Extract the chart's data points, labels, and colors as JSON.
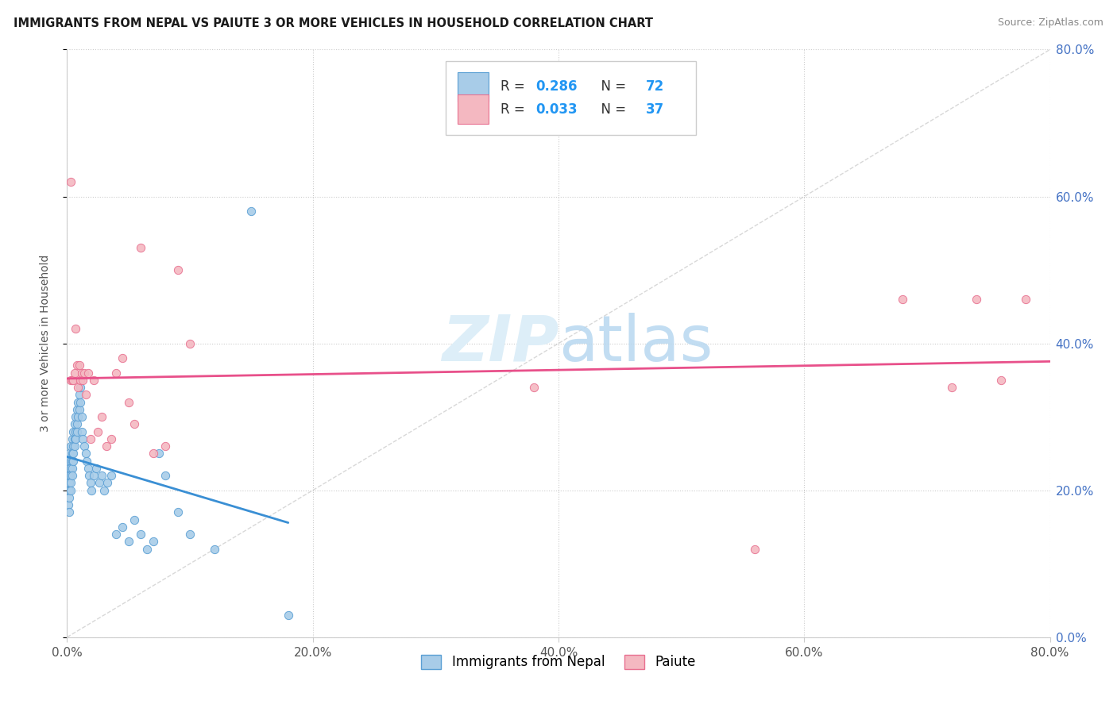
{
  "title": "IMMIGRANTS FROM NEPAL VS PAIUTE 3 OR MORE VEHICLES IN HOUSEHOLD CORRELATION CHART",
  "source": "Source: ZipAtlas.com",
  "ylabel": "3 or more Vehicles in Household",
  "xlim": [
    0.0,
    0.8
  ],
  "ylim": [
    0.0,
    0.8
  ],
  "xtick_vals": [
    0.0,
    0.2,
    0.4,
    0.6,
    0.8
  ],
  "xtick_labels": [
    "0.0%",
    "20.0%",
    "40.0%",
    "60.0%",
    "80.0%"
  ],
  "ytick_vals": [
    0.0,
    0.2,
    0.4,
    0.6,
    0.8
  ],
  "ytick_labels_right": [
    "0.0%",
    "20.0%",
    "40.0%",
    "60.0%",
    "80.0%"
  ],
  "series1_color": "#a8cce8",
  "series2_color": "#f4b8c1",
  "series1_edge": "#5a9fd4",
  "series2_edge": "#e87090",
  "trendline1_color": "#3a8fd4",
  "trendline2_color": "#e8508a",
  "diagonal_color": "#c8c8c8",
  "watermark_color": "#ddeef8",
  "background_color": "#ffffff",
  "nepal_x": [
    0.001,
    0.001,
    0.001,
    0.001,
    0.002,
    0.002,
    0.002,
    0.002,
    0.002,
    0.002,
    0.002,
    0.003,
    0.003,
    0.003,
    0.003,
    0.003,
    0.003,
    0.004,
    0.004,
    0.004,
    0.004,
    0.004,
    0.005,
    0.005,
    0.005,
    0.005,
    0.006,
    0.006,
    0.006,
    0.007,
    0.007,
    0.007,
    0.008,
    0.008,
    0.008,
    0.009,
    0.009,
    0.01,
    0.01,
    0.011,
    0.011,
    0.012,
    0.012,
    0.013,
    0.014,
    0.015,
    0.016,
    0.017,
    0.018,
    0.019,
    0.02,
    0.022,
    0.024,
    0.026,
    0.028,
    0.03,
    0.033,
    0.036,
    0.04,
    0.045,
    0.05,
    0.055,
    0.06,
    0.065,
    0.07,
    0.075,
    0.08,
    0.09,
    0.1,
    0.12,
    0.15,
    0.18
  ],
  "nepal_y": [
    0.24,
    0.22,
    0.2,
    0.18,
    0.25,
    0.23,
    0.22,
    0.21,
    0.2,
    0.19,
    0.17,
    0.26,
    0.24,
    0.23,
    0.22,
    0.21,
    0.2,
    0.27,
    0.25,
    0.24,
    0.23,
    0.22,
    0.28,
    0.26,
    0.25,
    0.24,
    0.29,
    0.27,
    0.26,
    0.3,
    0.28,
    0.27,
    0.31,
    0.29,
    0.28,
    0.32,
    0.3,
    0.33,
    0.31,
    0.34,
    0.32,
    0.3,
    0.28,
    0.27,
    0.26,
    0.25,
    0.24,
    0.23,
    0.22,
    0.21,
    0.2,
    0.22,
    0.23,
    0.21,
    0.22,
    0.2,
    0.21,
    0.22,
    0.14,
    0.15,
    0.13,
    0.16,
    0.14,
    0.12,
    0.13,
    0.25,
    0.22,
    0.17,
    0.14,
    0.12,
    0.58,
    0.03
  ],
  "paiute_x": [
    0.003,
    0.003,
    0.004,
    0.005,
    0.006,
    0.007,
    0.008,
    0.009,
    0.01,
    0.011,
    0.012,
    0.013,
    0.014,
    0.015,
    0.017,
    0.019,
    0.022,
    0.025,
    0.028,
    0.032,
    0.036,
    0.04,
    0.045,
    0.05,
    0.055,
    0.06,
    0.07,
    0.08,
    0.09,
    0.1,
    0.38,
    0.56,
    0.68,
    0.72,
    0.74,
    0.76,
    0.78
  ],
  "paiute_y": [
    0.62,
    0.35,
    0.35,
    0.35,
    0.36,
    0.42,
    0.37,
    0.34,
    0.37,
    0.35,
    0.36,
    0.35,
    0.36,
    0.33,
    0.36,
    0.27,
    0.35,
    0.28,
    0.3,
    0.26,
    0.27,
    0.36,
    0.38,
    0.32,
    0.29,
    0.53,
    0.25,
    0.26,
    0.5,
    0.4,
    0.34,
    0.12,
    0.46,
    0.34,
    0.46,
    0.35,
    0.46
  ]
}
